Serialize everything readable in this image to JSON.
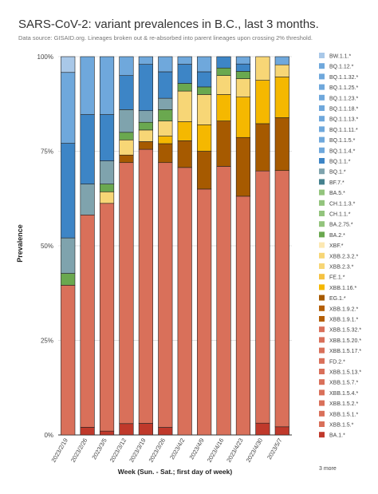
{
  "chart_data": {
    "type": "bar",
    "stacked": true,
    "title": "SARS-CoV-2: variant prevalences in B.C., last 3 months.",
    "subtitle": "Data source: GISAID.org. Lineages broken out & re-absorbed into parent lineages upon crossing 2% threshold.",
    "xlabel": "Week (Sun. - Sat.; first day of week)",
    "ylabel": "Prevalence",
    "ylim": [
      0,
      100
    ],
    "yticks": [
      "0%",
      "25%",
      "50%",
      "75%",
      "100%"
    ],
    "grid": true,
    "legend_position": "right",
    "legend_more": "3 more",
    "categories": [
      "2023/2/19",
      "2023/2/26",
      "2023/3/5",
      "2023/3/12",
      "2023/3/19",
      "2023/3/26",
      "2023/4/2",
      "2023/4/9",
      "2023/4/16",
      "2023/4/23",
      "2023/4/30",
      "2023/5/7"
    ],
    "series": [
      {
        "name": "BA.1.*",
        "color": "#c0392b",
        "values": [
          0,
          2,
          1,
          3,
          3,
          2,
          0,
          0,
          0,
          0,
          3,
          2
        ]
      },
      {
        "name": "XBB.1.5.*",
        "color": "#d9705a",
        "values": [
          38,
          55,
          59,
          69,
          71,
          70,
          70,
          65,
          71,
          65,
          64,
          63
        ]
      },
      {
        "name": "XBB.1.9.1.*",
        "color": "#a65a00",
        "values": [
          0,
          0,
          0,
          2,
          2,
          5,
          7,
          10,
          12,
          16,
          12,
          13
        ]
      },
      {
        "name": "XBB.1.16.*",
        "color": "#f5b800",
        "values": [
          0,
          0,
          0,
          0,
          0,
          2,
          5,
          7,
          7,
          11,
          11,
          10
        ]
      },
      {
        "name": "XBB.2.3.*",
        "color": "#f7d676",
        "values": [
          0,
          0,
          3,
          4,
          3,
          4,
          8,
          8,
          5,
          5,
          6,
          3
        ]
      },
      {
        "name": "BA.2.*",
        "color": "#6aa84f",
        "values": [
          3,
          0,
          2,
          2,
          2,
          3,
          2,
          2,
          2,
          2,
          0,
          0
        ]
      },
      {
        "name": "BQ.1.*",
        "color": "#7fa3ad",
        "values": [
          9,
          8,
          6,
          6,
          3,
          3,
          0,
          0,
          0,
          0,
          0,
          0
        ]
      },
      {
        "name": "BQ.1.1.*",
        "color": "#3d85c6",
        "values": [
          24,
          18,
          12,
          9,
          12,
          7,
          5,
          4,
          3,
          2,
          0,
          0
        ]
      },
      {
        "name": "BQ.1.12.*",
        "color": "#6fa8dc",
        "values": [
          18,
          15,
          15,
          5,
          2,
          4,
          2,
          4,
          0,
          2,
          0,
          2
        ]
      },
      {
        "name": "BW.1.1.*",
        "color": "#a9c8e8",
        "values": [
          4,
          0,
          0,
          0,
          0,
          0,
          0,
          0,
          0,
          0,
          0,
          0
        ]
      }
    ],
    "legend": [
      {
        "name": "BW.1.1.*",
        "color": "#a9c8e8"
      },
      {
        "name": "BQ.1.12.*",
        "color": "#6fa8dc"
      },
      {
        "name": "BQ.1.1.32.*",
        "color": "#6fa8dc"
      },
      {
        "name": "BQ.1.1.25.*",
        "color": "#6fa8dc"
      },
      {
        "name": "BQ.1.1.23.*",
        "color": "#6fa8dc"
      },
      {
        "name": "BQ.1.1.18.*",
        "color": "#6fa8dc"
      },
      {
        "name": "BQ.1.1.13.*",
        "color": "#6fa8dc"
      },
      {
        "name": "BQ.1.1.11.*",
        "color": "#6fa8dc"
      },
      {
        "name": "BQ.1.1.5.*",
        "color": "#6fa8dc"
      },
      {
        "name": "BQ.1.1.4.*",
        "color": "#6fa8dc"
      },
      {
        "name": "BQ.1.1.*",
        "color": "#3d85c6"
      },
      {
        "name": "BQ.1.*",
        "color": "#7fa3ad"
      },
      {
        "name": "BF.7.*",
        "color": "#45818e"
      },
      {
        "name": "BA.5.*",
        "color": "#93c47d"
      },
      {
        "name": "CH.1.1.3.*",
        "color": "#93c47d"
      },
      {
        "name": "CH.1.1.*",
        "color": "#93c47d"
      },
      {
        "name": "BA.2.75.*",
        "color": "#93c47d"
      },
      {
        "name": "BA.2.*",
        "color": "#6aa84f"
      },
      {
        "name": "XBF.*",
        "color": "#fce8b2"
      },
      {
        "name": "XBB.2.3.2.*",
        "color": "#f7d676"
      },
      {
        "name": "XBB.2.3.*",
        "color": "#f7d676"
      },
      {
        "name": "FE.1.*",
        "color": "#f5c242"
      },
      {
        "name": "XBB.1.16.*",
        "color": "#f5b800"
      },
      {
        "name": "EG.1.*",
        "color": "#a65a00"
      },
      {
        "name": "XBB.1.9.2.*",
        "color": "#b45f06"
      },
      {
        "name": "XBB.1.9.1.*",
        "color": "#b45f06"
      },
      {
        "name": "XBB.1.5.32.*",
        "color": "#d9705a"
      },
      {
        "name": "XBB.1.5.20.*",
        "color": "#d9705a"
      },
      {
        "name": "XBB.1.5.17.*",
        "color": "#d9705a"
      },
      {
        "name": "FD.2.*",
        "color": "#d9705a"
      },
      {
        "name": "XBB.1.5.13.*",
        "color": "#d9705a"
      },
      {
        "name": "XBB.1.5.7.*",
        "color": "#d9705a"
      },
      {
        "name": "XBB.1.5.4.*",
        "color": "#d9705a"
      },
      {
        "name": "XBB.1.5.2.*",
        "color": "#d9705a"
      },
      {
        "name": "XBB.1.5.1.*",
        "color": "#d9705a"
      },
      {
        "name": "XBB.1.5.*",
        "color": "#d9705a"
      },
      {
        "name": "BA.1.*",
        "color": "#c0392b"
      }
    ]
  }
}
